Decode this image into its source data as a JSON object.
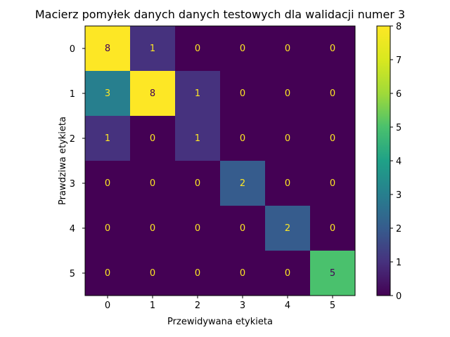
{
  "chart_data": {
    "type": "heatmap",
    "title": "Macierz pomyłek danych danych testowych dla walidacji numer 3",
    "xlabel": "Przewidywana etykieta",
    "ylabel": "Prawdziwa etykieta",
    "x_labels": [
      "0",
      "1",
      "2",
      "3",
      "4",
      "5"
    ],
    "y_labels": [
      "0",
      "1",
      "2",
      "3",
      "4",
      "5"
    ],
    "values": [
      [
        8,
        1,
        0,
        0,
        0,
        0
      ],
      [
        3,
        8,
        1,
        0,
        0,
        0
      ],
      [
        1,
        0,
        1,
        0,
        0,
        0
      ],
      [
        0,
        0,
        0,
        2,
        0,
        0
      ],
      [
        0,
        0,
        0,
        0,
        2,
        0
      ],
      [
        0,
        0,
        0,
        0,
        0,
        5
      ]
    ],
    "colormap": "viridis",
    "vmin": 0,
    "vmax": 8,
    "colorbar_ticks": [
      0,
      1,
      2,
      3,
      4,
      5,
      6,
      7,
      8
    ],
    "text_color_light": "#fde725",
    "text_color_dark": "#440154"
  }
}
